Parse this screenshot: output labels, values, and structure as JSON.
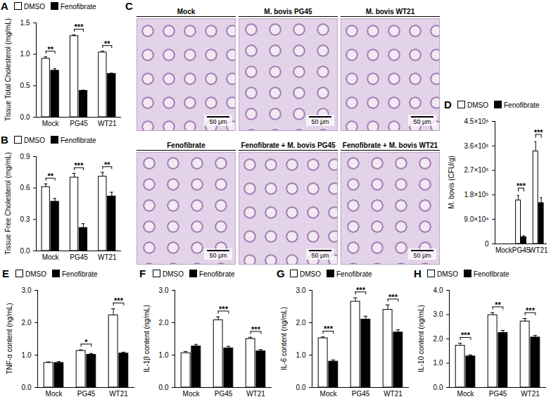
{
  "chart_data": [
    {
      "type": "bar",
      "panel": "A",
      "y_label": "Tissue Total Cholesterol (mg/mL)",
      "categories": [
        "Mock",
        "PG45",
        "WT21"
      ],
      "series": [
        {
          "name": "DMSO",
          "color": "#ffffff",
          "values": [
            0.93,
            1.29,
            1.03
          ],
          "errors": [
            0.03,
            0.02,
            0.02
          ]
        },
        {
          "name": "Fenofibrate",
          "color": "#000000",
          "values": [
            0.74,
            0.42,
            0.69
          ],
          "errors": [
            0.03,
            0.01,
            0.01
          ]
        }
      ],
      "significance": [
        "**",
        "***",
        "**"
      ],
      "ylim": [
        0,
        1.5
      ],
      "yticks": [
        {
          "value": 0,
          "label": "0.0"
        },
        0.5,
        {
          "value": 1,
          "label": "1.0"
        },
        1.5
      ],
      "legend": "top"
    },
    {
      "type": "bar",
      "panel": "B",
      "y_label": "Tissue Free Cholesterol (mg/mL)",
      "categories": [
        "Mock",
        "PG45",
        "WT21"
      ],
      "series": [
        {
          "name": "DMSO",
          "color": "#ffffff",
          "values": [
            0.61,
            0.7,
            0.71
          ],
          "errors": [
            0.03,
            0.04,
            0.04
          ]
        },
        {
          "name": "Fenofibrate",
          "color": "#000000",
          "values": [
            0.47,
            0.22,
            0.52
          ],
          "errors": [
            0.03,
            0.04,
            0.04
          ]
        }
      ],
      "significance": [
        "**",
        "***",
        "**"
      ],
      "ylim": [
        0,
        0.9
      ],
      "yticks": [
        {
          "value": 0,
          "label": "0.0"
        },
        0.3,
        0.6,
        0.9
      ],
      "legend": "top"
    },
    {
      "type": "bar",
      "panel": "D",
      "y_label": "M. bovis (CFU/g)",
      "categories": [
        "Mock",
        "PG45",
        "WT21"
      ],
      "series": [
        {
          "name": "DMSO",
          "color": "#ffffff",
          "values": [
            0,
            160000,
            340000
          ],
          "errors": [
            0,
            18000,
            35000
          ]
        },
        {
          "name": "Fenofibrate",
          "color": "#000000",
          "values": [
            0,
            25000,
            150000
          ],
          "errors": [
            0,
            5000,
            20000
          ]
        }
      ],
      "significance": [
        null,
        "***",
        "***"
      ],
      "ylim": [
        0,
        450000
      ],
      "yticks": [
        0,
        {
          "value": 90000,
          "label": "9.0×10⁴"
        },
        {
          "value": 180000,
          "label": "1.8×10⁵"
        },
        {
          "value": 270000,
          "label": "2.7×10⁵"
        },
        {
          "value": 360000,
          "label": "3.6×10⁵"
        },
        {
          "value": 450000,
          "label": "4.5×10⁵"
        }
      ],
      "legend": "top"
    },
    {
      "type": "bar",
      "panel": "E",
      "y_label": "TNF-α content (ng/mL)",
      "categories": [
        "Mock",
        "PG45",
        "WT21"
      ],
      "series": [
        {
          "name": "DMSO",
          "color": "#ffffff",
          "values": [
            0.76,
            1.13,
            2.23
          ],
          "errors": [
            0.03,
            0.03,
            0.2
          ]
        },
        {
          "name": "Fenofibrate",
          "color": "#000000",
          "values": [
            0.76,
            1.01,
            1.05
          ],
          "errors": [
            0.04,
            0.04,
            0.04
          ]
        }
      ],
      "significance": [
        null,
        "*",
        "***"
      ],
      "ylim": [
        0,
        3
      ],
      "yticks": [
        {
          "value": 0,
          "label": "0.0"
        },
        {
          "value": 1,
          "label": "1.0"
        },
        {
          "value": 2,
          "label": "2.0"
        },
        {
          "value": 3,
          "label": "3.0"
        }
      ],
      "legend": "top"
    },
    {
      "type": "bar",
      "panel": "F",
      "y_label": "IL-1β content (ng/mL)",
      "categories": [
        "Mock",
        "PG45",
        "WT21"
      ],
      "series": [
        {
          "name": "DMSO",
          "color": "#ffffff",
          "values": [
            1.06,
            2.08,
            1.5
          ],
          "errors": [
            0.05,
            0.1,
            0.05
          ]
        },
        {
          "name": "Fenofibrate",
          "color": "#000000",
          "values": [
            1.27,
            1.21,
            1.12
          ],
          "errors": [
            0.06,
            0.06,
            0.05
          ]
        }
      ],
      "significance": [
        null,
        "***",
        "***"
      ],
      "ylim": [
        0,
        3
      ],
      "yticks": [
        {
          "value": 0,
          "label": "0.0"
        },
        {
          "value": 1,
          "label": "1.0"
        },
        {
          "value": 2,
          "label": "2.0"
        },
        {
          "value": 3,
          "label": "3.0"
        }
      ],
      "legend": "top"
    },
    {
      "type": "bar",
      "panel": "G",
      "y_label": "IL-6 content (ng/mL)",
      "categories": [
        "Mock",
        "PG45",
        "WT21"
      ],
      "series": [
        {
          "name": "DMSO",
          "color": "#ffffff",
          "values": [
            1.52,
            2.65,
            2.4
          ],
          "errors": [
            0.04,
            0.12,
            0.15
          ]
        },
        {
          "name": "Fenofibrate",
          "color": "#000000",
          "values": [
            0.8,
            2.1,
            1.7
          ],
          "errors": [
            0.05,
            0.1,
            0.08
          ]
        }
      ],
      "significance": [
        "***",
        "***",
        "***"
      ],
      "ylim": [
        0,
        3
      ],
      "yticks": [
        {
          "value": 0,
          "label": "0.0"
        },
        {
          "value": 1,
          "label": "1.0"
        },
        {
          "value": 2,
          "label": "2.0"
        },
        {
          "value": 3,
          "label": "3.0"
        }
      ],
      "legend": "top"
    },
    {
      "type": "bar",
      "panel": "H",
      "y_label": "IL-10 content (ng/mL)",
      "categories": [
        "Mock",
        "PG45",
        "WT21"
      ],
      "series": [
        {
          "name": "DMSO",
          "color": "#ffffff",
          "values": [
            1.72,
            2.98,
            2.72
          ],
          "errors": [
            0.1,
            0.1,
            0.12
          ]
        },
        {
          "name": "Fenofibrate",
          "color": "#000000",
          "values": [
            1.28,
            2.25,
            2.06
          ],
          "errors": [
            0.06,
            0.1,
            0.08
          ]
        }
      ],
      "significance": [
        "***",
        "**",
        "***"
      ],
      "ylim": [
        0,
        4
      ],
      "yticks": [
        {
          "value": 0,
          "label": "0.0"
        },
        {
          "value": 1,
          "label": "1.0"
        },
        {
          "value": 2,
          "label": "2.0"
        },
        {
          "value": 3,
          "label": "3.0"
        },
        {
          "value": 4,
          "label": "4.0"
        }
      ],
      "legend": "top"
    }
  ],
  "panel_c": {
    "panel": "C",
    "images": [
      {
        "title": "Mock",
        "scale_bar": "50 μm"
      },
      {
        "title": "M. bovis PG45",
        "scale_bar": "50 μm"
      },
      {
        "title": "M. bovis WT21",
        "scale_bar": "50 μm"
      },
      {
        "title": "Fenofibrate",
        "scale_bar": "50 μm"
      },
      {
        "title": "Fenofibrate + M. bovis PG45",
        "scale_bar": "50 μm"
      },
      {
        "title": "Fenofibrate + M. bovis WT21",
        "scale_bar": "50 μm"
      }
    ]
  }
}
